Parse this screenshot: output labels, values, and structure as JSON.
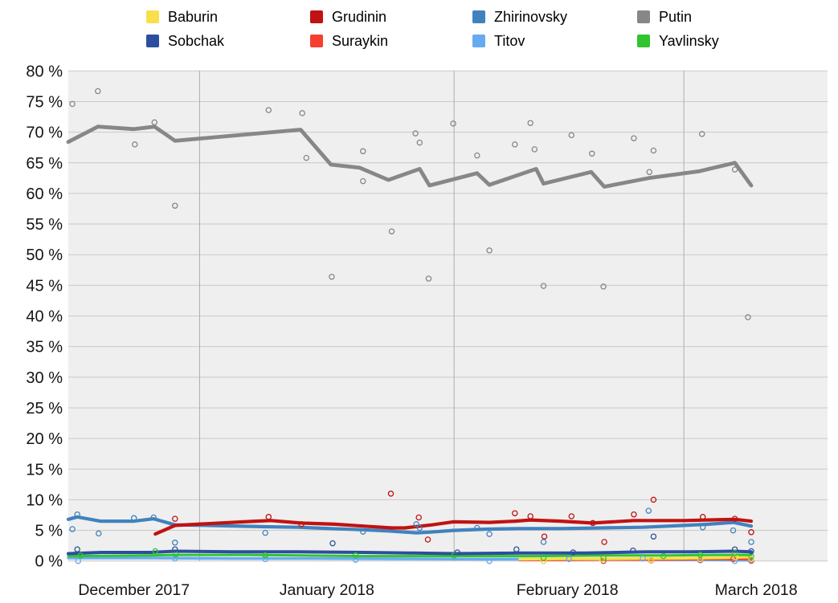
{
  "chart_data": {
    "type": "line+scatter",
    "description": "Opinion polling trend lines with individual poll results as hollow circle markers, December 2017 - March 2018",
    "x_axis": {
      "unit": "days (0 = left edge of chart, mid-December 2017)",
      "domain": [
        0,
        92.5
      ],
      "month_gridline_days": [
        16,
        47,
        75
      ],
      "month_labels": [
        {
          "label": "December 2017",
          "center_day": 8
        },
        {
          "label": "January 2018",
          "center_day": 31.5
        },
        {
          "label": "February 2018",
          "center_day": 60.8
        },
        {
          "label": "March 2018",
          "center_day": 83.8
        }
      ]
    },
    "y_axis": {
      "min": 0,
      "max": 80,
      "tick_step": 5,
      "tick_labels": [
        "0 %",
        "5 %",
        "10 %",
        "15 %",
        "20 %",
        "25 %",
        "30 %",
        "35 %",
        "40 %",
        "45 %",
        "50 %",
        "55 %",
        "60 %",
        "65 %",
        "70 %",
        "75 %",
        "80 %"
      ]
    },
    "layout": {
      "plot_background": "#efefef",
      "h_gridline_color": "#c9c9c9",
      "v_gridline_color": "#aeaeae",
      "legend_position": "top",
      "grid": true
    },
    "legend_order": [
      "Baburin",
      "Grudinin",
      "Zhirinovsky",
      "Putin",
      "Sobchak",
      "Suraykin",
      "Titov",
      "Yavlinsky"
    ],
    "series": [
      {
        "name": "Putin",
        "color": "#878787",
        "line_width": 4.8,
        "trend": [
          [
            0,
            68.4
          ],
          [
            3.6,
            70.9
          ],
          [
            8,
            70.5
          ],
          [
            10.5,
            70.9
          ],
          [
            13,
            68.6
          ],
          [
            28.3,
            70.4
          ],
          [
            32,
            64.7
          ],
          [
            35.5,
            64.2
          ],
          [
            39,
            62.2
          ],
          [
            42.8,
            64.0
          ],
          [
            44,
            61.3
          ],
          [
            49.8,
            63.3
          ],
          [
            51.3,
            61.4
          ],
          [
            57,
            64.0
          ],
          [
            57.9,
            61.6
          ],
          [
            63.7,
            63.5
          ],
          [
            65.3,
            61.1
          ],
          [
            70.7,
            62.5
          ],
          [
            76.8,
            63.6
          ],
          [
            81.2,
            65.0
          ],
          [
            83.2,
            61.3
          ]
        ],
        "polls": [
          [
            0.5,
            74.6
          ],
          [
            3.6,
            76.7
          ],
          [
            8.1,
            68.0
          ],
          [
            10.5,
            71.6
          ],
          [
            13,
            58.0
          ],
          [
            24.4,
            73.6
          ],
          [
            28.5,
            73.1
          ],
          [
            29,
            65.8
          ],
          [
            32.1,
            46.4
          ],
          [
            35.9,
            66.9
          ],
          [
            35.9,
            62.0
          ],
          [
            39.4,
            53.8
          ],
          [
            42.3,
            69.8
          ],
          [
            42.8,
            68.3
          ],
          [
            43.9,
            46.1
          ],
          [
            46.9,
            71.4
          ],
          [
            49.8,
            66.2
          ],
          [
            51.3,
            50.7
          ],
          [
            54.4,
            68.0
          ],
          [
            56.3,
            71.5
          ],
          [
            56.8,
            67.2
          ],
          [
            57.9,
            44.9
          ],
          [
            61.3,
            69.5
          ],
          [
            63.8,
            66.5
          ],
          [
            65.2,
            44.8
          ],
          [
            68.9,
            69.0
          ],
          [
            70.8,
            63.5
          ],
          [
            71.3,
            67.0
          ],
          [
            77.2,
            69.7
          ],
          [
            81.2,
            63.9
          ],
          [
            82.8,
            39.8
          ]
        ]
      },
      {
        "name": "Titov",
        "color": "#66abf2",
        "line_width": 3.4,
        "trend": [
          [
            0,
            0.5
          ],
          [
            10,
            0.5
          ],
          [
            20,
            0.4
          ],
          [
            30,
            0.4
          ],
          [
            40,
            0.35
          ],
          [
            50,
            0.3
          ],
          [
            60,
            0.3
          ],
          [
            70,
            0.25
          ],
          [
            78,
            0.2
          ],
          [
            83.2,
            0.1
          ]
        ],
        "polls": [
          [
            1.2,
            0.0
          ],
          [
            13,
            0.4
          ],
          [
            24,
            0.3
          ],
          [
            35,
            0.2
          ],
          [
            51.3,
            0.0
          ],
          [
            61,
            0.3
          ],
          [
            70,
            0.4
          ],
          [
            77,
            0.1
          ],
          [
            81.2,
            0.0
          ],
          [
            83.2,
            0.0
          ]
        ]
      },
      {
        "name": "Suraykin",
        "color": "#f5402f",
        "line_width": 2.6,
        "trend": [
          [
            55,
            0.15
          ],
          [
            60,
            0.15
          ],
          [
            65,
            0.2
          ],
          [
            70,
            0.2
          ],
          [
            75,
            0.25
          ],
          [
            80,
            0.3
          ],
          [
            83.2,
            0.3
          ]
        ],
        "polls": [
          [
            57.9,
            0.0
          ],
          [
            65.2,
            0.0
          ],
          [
            71,
            0.1
          ],
          [
            77,
            0.2
          ],
          [
            81,
            0.3
          ],
          [
            83.2,
            0.1
          ]
        ]
      },
      {
        "name": "Baburin",
        "color": "#f7e04b",
        "line_width": 3.4,
        "trend": [
          [
            55,
            0.3
          ],
          [
            60,
            0.35
          ],
          [
            65,
            0.35
          ],
          [
            70,
            0.4
          ],
          [
            75,
            0.45
          ],
          [
            80,
            0.55
          ],
          [
            83.2,
            0.65
          ]
        ],
        "polls": [
          [
            57.9,
            0.0
          ],
          [
            65,
            0.3
          ],
          [
            71,
            0.2
          ],
          [
            77,
            0.3
          ],
          [
            81.3,
            0.6
          ],
          [
            83.2,
            0.3
          ]
        ]
      },
      {
        "name": "Yavlinsky",
        "color": "#30c431",
        "line_width": 3.0,
        "trend": [
          [
            0,
            0.8
          ],
          [
            10,
            0.9
          ],
          [
            13,
            1.0
          ],
          [
            22,
            1.0
          ],
          [
            28,
            0.9
          ],
          [
            36,
            0.8
          ],
          [
            47,
            0.8
          ],
          [
            57,
            0.8
          ],
          [
            65,
            0.9
          ],
          [
            73,
            0.9
          ],
          [
            79,
            1.0
          ],
          [
            83.2,
            1.0
          ]
        ],
        "polls": [
          [
            1.5,
            0.9
          ],
          [
            10.6,
            1.6
          ],
          [
            13.1,
            1.1
          ],
          [
            24,
            0.9
          ],
          [
            35,
            0.9
          ],
          [
            47,
            0.9
          ],
          [
            57.9,
            0.5
          ],
          [
            65.2,
            0.5
          ],
          [
            72.5,
            0.8
          ],
          [
            77,
            1.0
          ],
          [
            81.2,
            1.3
          ],
          [
            83.2,
            0.8
          ]
        ]
      },
      {
        "name": "Sobchak",
        "color": "#2d4e9e",
        "line_width": 4.0,
        "trend": [
          [
            0,
            1.2
          ],
          [
            4,
            1.4
          ],
          [
            10,
            1.4
          ],
          [
            13,
            1.6
          ],
          [
            20,
            1.5
          ],
          [
            28,
            1.5
          ],
          [
            36,
            1.4
          ],
          [
            42,
            1.3
          ],
          [
            47,
            1.2
          ],
          [
            55,
            1.3
          ],
          [
            63,
            1.3
          ],
          [
            70.5,
            1.5
          ],
          [
            76,
            1.5
          ],
          [
            81,
            1.6
          ],
          [
            83.2,
            1.5
          ]
        ],
        "polls": [
          [
            1.1,
            1.9
          ],
          [
            13,
            1.9
          ],
          [
            32.2,
            2.9
          ],
          [
            47.4,
            1.4
          ],
          [
            54.6,
            1.9
          ],
          [
            61.5,
            1.4
          ],
          [
            68.8,
            1.7
          ],
          [
            71.3,
            4.0
          ],
          [
            81.2,
            1.9
          ],
          [
            83.2,
            1.6
          ]
        ]
      },
      {
        "name": "Zhirinovsky",
        "color": "#4182be",
        "line_width": 4.2,
        "trend": [
          [
            0,
            6.8
          ],
          [
            1.1,
            7.2
          ],
          [
            3.9,
            6.5
          ],
          [
            8,
            6.5
          ],
          [
            10.4,
            6.9
          ],
          [
            13,
            5.9
          ],
          [
            17,
            5.8
          ],
          [
            24,
            5.6
          ],
          [
            28,
            5.5
          ],
          [
            32,
            5.3
          ],
          [
            36,
            5.1
          ],
          [
            39,
            4.9
          ],
          [
            42.4,
            4.6
          ],
          [
            44,
            4.7
          ],
          [
            46.9,
            5.0
          ],
          [
            51,
            5.2
          ],
          [
            55,
            5.3
          ],
          [
            60,
            5.3
          ],
          [
            65,
            5.4
          ],
          [
            70,
            5.5
          ],
          [
            75,
            5.8
          ],
          [
            78,
            6.0
          ],
          [
            81,
            6.3
          ],
          [
            83.2,
            5.7
          ]
        ],
        "polls": [
          [
            0.5,
            5.2
          ],
          [
            1.1,
            7.6
          ],
          [
            3.7,
            4.5
          ],
          [
            8,
            7.0
          ],
          [
            10.4,
            7.1
          ],
          [
            13,
            3.0
          ],
          [
            24,
            4.6
          ],
          [
            35.9,
            4.8
          ],
          [
            42.4,
            6.0
          ],
          [
            42.8,
            5.4
          ],
          [
            49.8,
            5.4
          ],
          [
            51.3,
            4.4
          ],
          [
            57.9,
            3.1
          ],
          [
            70.7,
            8.2
          ],
          [
            77.3,
            5.5
          ],
          [
            81,
            5.0
          ],
          [
            83.2,
            3.1
          ]
        ]
      },
      {
        "name": "Grudinin",
        "color": "#c01212",
        "line_width": 4.2,
        "trend": [
          [
            10.6,
            4.4
          ],
          [
            13,
            5.8
          ],
          [
            17,
            6.1
          ],
          [
            22.8,
            6.5
          ],
          [
            24.7,
            6.6
          ],
          [
            28.3,
            6.2
          ],
          [
            32.5,
            6.0
          ],
          [
            35.9,
            5.7
          ],
          [
            39.4,
            5.4
          ],
          [
            41,
            5.4
          ],
          [
            44.3,
            5.9
          ],
          [
            46.9,
            6.4
          ],
          [
            51.3,
            6.3
          ],
          [
            54.4,
            6.5
          ],
          [
            56.3,
            6.7
          ],
          [
            60,
            6.5
          ],
          [
            63.9,
            6.2
          ],
          [
            68.9,
            6.6
          ],
          [
            75,
            6.6
          ],
          [
            81.2,
            6.8
          ],
          [
            83.2,
            6.5
          ]
        ],
        "polls": [
          [
            13,
            6.9
          ],
          [
            24.4,
            7.2
          ],
          [
            28.4,
            6.0
          ],
          [
            39.3,
            11.0
          ],
          [
            42.7,
            7.1
          ],
          [
            43.8,
            3.5
          ],
          [
            54.4,
            7.8
          ],
          [
            56.3,
            7.3
          ],
          [
            58,
            4.0
          ],
          [
            61.3,
            7.3
          ],
          [
            63.9,
            6.2
          ],
          [
            65.3,
            3.1
          ],
          [
            68.9,
            7.6
          ],
          [
            71.3,
            10.0
          ],
          [
            77.3,
            7.2
          ],
          [
            81.2,
            6.9
          ],
          [
            83.2,
            4.7
          ]
        ]
      }
    ]
  }
}
